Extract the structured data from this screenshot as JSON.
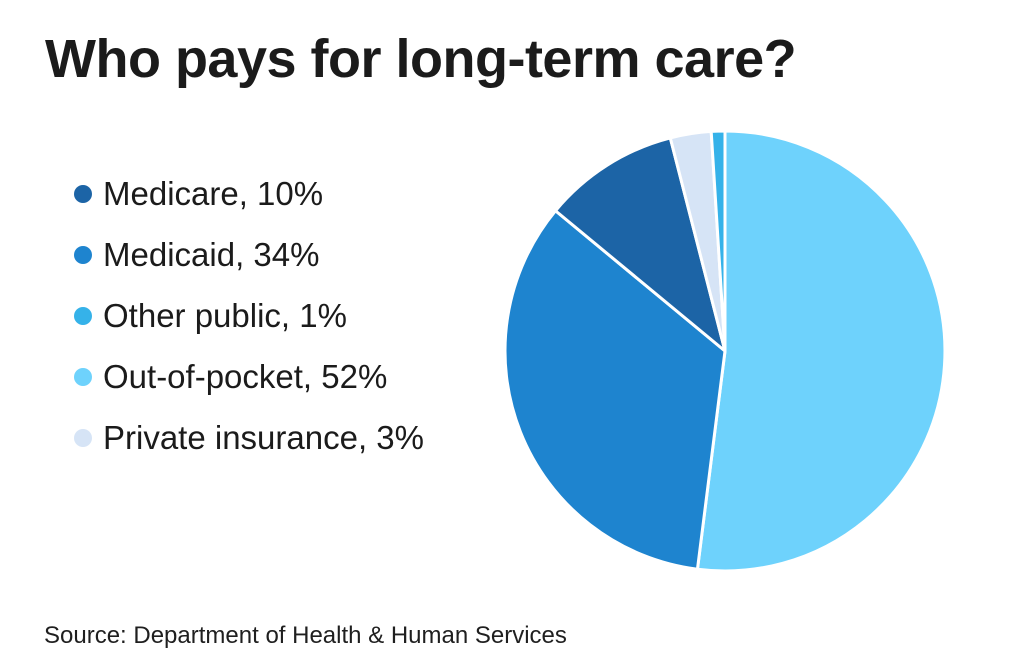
{
  "title": "Who pays for long-term care?",
  "source": "Source: Department of Health & Human Services",
  "colors": {
    "background": "#ffffff",
    "text": "#1b1b1b",
    "slice_separator": "#ffffff"
  },
  "chart_data": {
    "type": "pie",
    "title": "Who pays for long-term care?",
    "unit": "%",
    "legend_position": "left",
    "slices": [
      {
        "label": "Medicare",
        "value": 10,
        "display": "Medicare, 10%",
        "color": "#1c64a6"
      },
      {
        "label": "Medicaid",
        "value": 34,
        "display": "Medicaid, 34%",
        "color": "#1e84cf"
      },
      {
        "label": "Other public",
        "value": 1,
        "display": "Other public, 1%",
        "color": "#35b2e9"
      },
      {
        "label": "Out-of-pocket",
        "value": 52,
        "display": "Out-of-pocket, 52%",
        "color": "#6ed2fc"
      },
      {
        "label": "Private insurance",
        "value": 3,
        "display": "Private insurance, 3%",
        "color": "#d6e4f6"
      }
    ],
    "clockwise_order_from_top": [
      "Out-of-pocket",
      "Medicaid",
      "Medicare",
      "Private insurance",
      "Other public"
    ],
    "start_angle_deg": 0,
    "stroke_color": "#ffffff",
    "stroke_width": 3
  }
}
